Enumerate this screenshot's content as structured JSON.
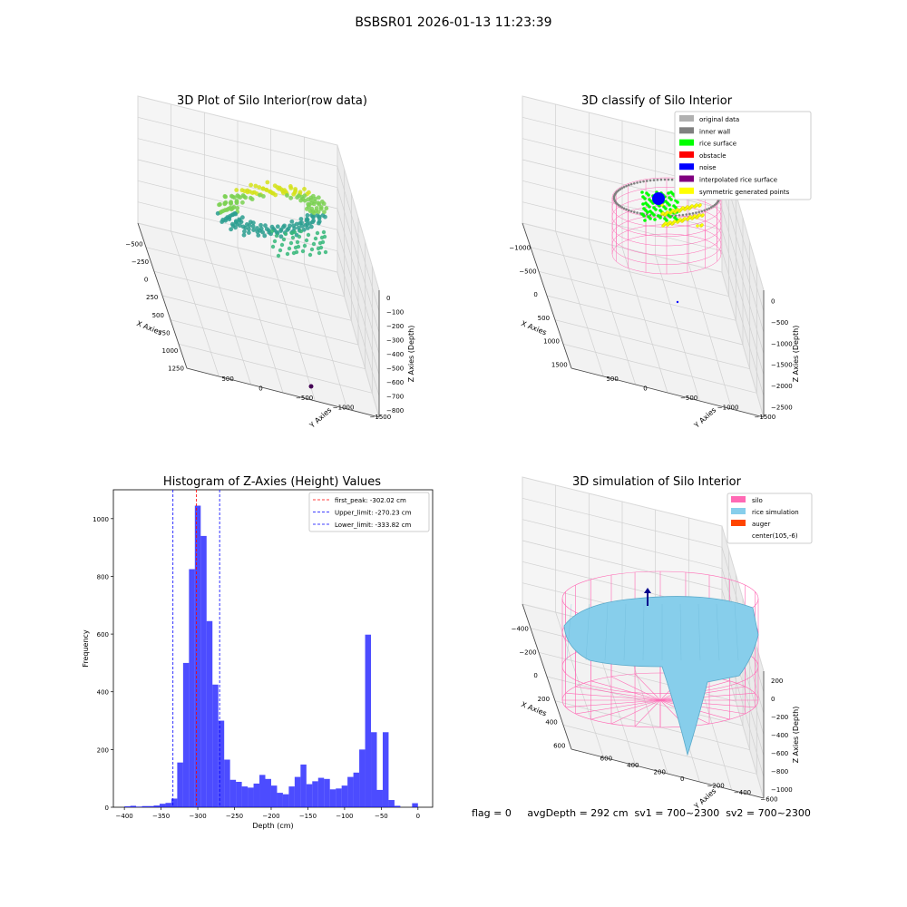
{
  "figure_title": "BSBSR01 2026-01-13 11:23:39",
  "footer": {
    "text": "flag = 0     avgDepth = 292 cm  sv1 = 700~2300  sv2 = 700~2300"
  },
  "panels": {
    "raw": {
      "title": "3D Plot of Silo Interior(row data)",
      "xlabel": "X Axies",
      "ylabel": "Y Axies",
      "zlabel": "Z Axies (Depth)",
      "xticks": [
        "−500",
        "−250",
        "0",
        "250",
        "500",
        "750",
        "1000",
        "1250"
      ],
      "yticks": [
        "500",
        "0",
        "−500",
        "−1000",
        "−1500"
      ],
      "zticks": [
        "0",
        "−100",
        "−200",
        "−300",
        "−400",
        "−500",
        "−600",
        "−700",
        "−800"
      ]
    },
    "classify": {
      "title": "3D classify of Silo Interior",
      "xlabel": "X Axies",
      "ylabel": "Y Axies",
      "zlabel": "Z Axies (Depth)",
      "xticks": [
        "−1000",
        "−500",
        "0",
        "500",
        "1000",
        "1500"
      ],
      "yticks": [
        "500",
        "0",
        "−500",
        "−1000",
        "−1500"
      ],
      "zticks": [
        "0",
        "−500",
        "−1000",
        "−1500",
        "−2000",
        "−2500"
      ],
      "legend": [
        {
          "label": "original data",
          "color": "#b0b0b0"
        },
        {
          "label": "inner wall",
          "color": "#808080"
        },
        {
          "label": "rice surface",
          "color": "#00ff00"
        },
        {
          "label": "obstacle",
          "color": "#ff0000"
        },
        {
          "label": "noise",
          "color": "#0000ff"
        },
        {
          "label": "interpolated rice surface",
          "color": "#800080"
        },
        {
          "label": "symmetric generated points",
          "color": "#ffff00"
        }
      ]
    },
    "simulation": {
      "title": "3D simulation of Silo Interior",
      "xlabel": "X Axies",
      "ylabel": "Y Axies",
      "zlabel": "Z Axies (Depth)",
      "xticks": [
        "−400",
        "−200",
        "0",
        "200",
        "400",
        "600"
      ],
      "yticks": [
        "600",
        "400",
        "200",
        "0",
        "−200",
        "−400",
        "−600"
      ],
      "zticks": [
        "200",
        "0",
        "−200",
        "−400",
        "−600",
        "−800",
        "−1000"
      ],
      "legend": [
        {
          "label": "silo",
          "color": "#ff69b4"
        },
        {
          "label": "rice simulation",
          "color": "#87ceeb"
        },
        {
          "label": "auger",
          "color": "#ff4500"
        },
        {
          "label": "center(105,-6)",
          "color": ""
        }
      ]
    }
  },
  "chart_data": {
    "type": "bar",
    "title": "Histogram of Z-Axies (Height) Values",
    "xlabel": "Depth (cm)",
    "ylabel": "Frequency",
    "xlim": [
      -415,
      20
    ],
    "ylim": [
      0,
      1100
    ],
    "xticks": [
      -400,
      -350,
      -300,
      -250,
      -200,
      -150,
      -100,
      -50,
      0
    ],
    "yticks": [
      0,
      200,
      400,
      600,
      800,
      1000
    ],
    "bar_color": "#0000ff",
    "bins": [
      {
        "x0": -400,
        "x1": -392,
        "count": 3
      },
      {
        "x0": -392,
        "x1": -384,
        "count": 5
      },
      {
        "x0": -384,
        "x1": -376,
        "count": 2
      },
      {
        "x0": -376,
        "x1": -368,
        "count": 4
      },
      {
        "x0": -368,
        "x1": -360,
        "count": 4
      },
      {
        "x0": -360,
        "x1": -352,
        "count": 6
      },
      {
        "x0": -352,
        "x1": -344,
        "count": 12
      },
      {
        "x0": -344,
        "x1": -336,
        "count": 15
      },
      {
        "x0": -336,
        "x1": -328,
        "count": 30
      },
      {
        "x0": -328,
        "x1": -320,
        "count": 155
      },
      {
        "x0": -320,
        "x1": -312,
        "count": 500
      },
      {
        "x0": -312,
        "x1": -304,
        "count": 825
      },
      {
        "x0": -304,
        "x1": -296,
        "count": 1045
      },
      {
        "x0": -296,
        "x1": -288,
        "count": 940
      },
      {
        "x0": -288,
        "x1": -280,
        "count": 645
      },
      {
        "x0": -280,
        "x1": -272,
        "count": 425
      },
      {
        "x0": -272,
        "x1": -264,
        "count": 300
      },
      {
        "x0": -264,
        "x1": -256,
        "count": 165
      },
      {
        "x0": -256,
        "x1": -248,
        "count": 95
      },
      {
        "x0": -248,
        "x1": -240,
        "count": 88
      },
      {
        "x0": -240,
        "x1": -232,
        "count": 72
      },
      {
        "x0": -232,
        "x1": -224,
        "count": 68
      },
      {
        "x0": -224,
        "x1": -216,
        "count": 82
      },
      {
        "x0": -216,
        "x1": -208,
        "count": 112
      },
      {
        "x0": -208,
        "x1": -200,
        "count": 98
      },
      {
        "x0": -200,
        "x1": -192,
        "count": 75
      },
      {
        "x0": -192,
        "x1": -184,
        "count": 50
      },
      {
        "x0": -184,
        "x1": -176,
        "count": 45
      },
      {
        "x0": -176,
        "x1": -168,
        "count": 72
      },
      {
        "x0": -168,
        "x1": -160,
        "count": 105
      },
      {
        "x0": -160,
        "x1": -152,
        "count": 148
      },
      {
        "x0": -152,
        "x1": -144,
        "count": 80
      },
      {
        "x0": -144,
        "x1": -136,
        "count": 90
      },
      {
        "x0": -136,
        "x1": -128,
        "count": 102
      },
      {
        "x0": -128,
        "x1": -120,
        "count": 98
      },
      {
        "x0": -120,
        "x1": -112,
        "count": 62
      },
      {
        "x0": -112,
        "x1": -104,
        "count": 65
      },
      {
        "x0": -104,
        "x1": -96,
        "count": 75
      },
      {
        "x0": -96,
        "x1": -88,
        "count": 105
      },
      {
        "x0": -88,
        "x1": -80,
        "count": 120
      },
      {
        "x0": -80,
        "x1": -72,
        "count": 200
      },
      {
        "x0": -72,
        "x1": -64,
        "count": 598
      },
      {
        "x0": -64,
        "x1": -56,
        "count": 260
      },
      {
        "x0": -56,
        "x1": -48,
        "count": 60
      },
      {
        "x0": -48,
        "x1": -40,
        "count": 260
      },
      {
        "x0": -40,
        "x1": -32,
        "count": 25
      },
      {
        "x0": -32,
        "x1": -24,
        "count": 5
      },
      {
        "x0": -24,
        "x1": -16,
        "count": 0
      },
      {
        "x0": -16,
        "x1": -8,
        "count": 0
      },
      {
        "x0": -8,
        "x1": 0,
        "count": 14
      }
    ],
    "vlines": [
      {
        "x": -302.02,
        "color": "#ff0000",
        "label": "first_peak: -302.02 cm"
      },
      {
        "x": -270.23,
        "color": "#0000ff",
        "label": "Upper_limit: -270.23 cm"
      },
      {
        "x": -333.82,
        "color": "#0000ff",
        "label": "Lower_limit: -333.82 cm"
      }
    ],
    "legend_position": "upper right"
  }
}
